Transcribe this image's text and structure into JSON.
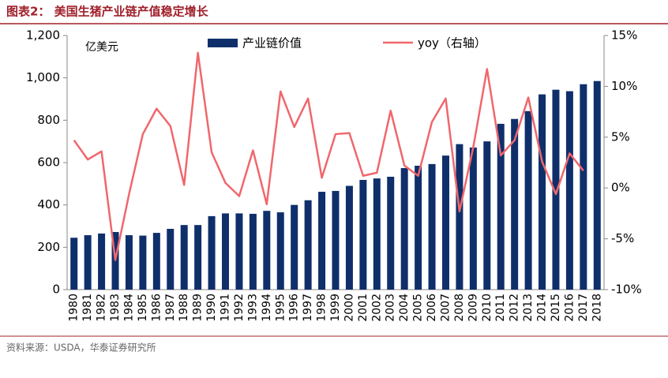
{
  "chart_data": {
    "type": "bar_line",
    "title": "图表2： 美国生猪产业链产值稳定增长",
    "unit_label": "亿美元",
    "source": "资料来源：USDA，华泰证券研究所",
    "categories": [
      "1980",
      "1981",
      "1982",
      "1983",
      "1984",
      "1985",
      "1986",
      "1987",
      "1988",
      "1989",
      "1990",
      "1991",
      "1992",
      "1993",
      "1994",
      "1995",
      "1996",
      "1997",
      "1998",
      "1999",
      "2000",
      "2001",
      "2002",
      "2003",
      "2004",
      "2005",
      "2006",
      "2007",
      "2008",
      "2009",
      "2010",
      "2011",
      "2012",
      "2013",
      "2014",
      "2015",
      "2016",
      "2017",
      "2018"
    ],
    "series": [
      {
        "name": "产业链价值",
        "type": "bar",
        "color": "#0f2f6b",
        "values": [
          245,
          257,
          265,
          272,
          257,
          255,
          268,
          287,
          305,
          305,
          347,
          360,
          360,
          358,
          372,
          365,
          400,
          422,
          462,
          466,
          490,
          518,
          525,
          533,
          574,
          585,
          593,
          633,
          687,
          671,
          700,
          783,
          806,
          843,
          922,
          944,
          937,
          970,
          985
        ]
      },
      {
        "name": "yoy（右轴）",
        "type": "line",
        "axis": "y2",
        "color": "#f0676c",
        "values": [
          4.7,
          2.8,
          3.6,
          -7.1,
          -0.6,
          5.3,
          7.8,
          6.1,
          0.3,
          13.3,
          3.5,
          0.5,
          -0.8,
          3.7,
          -1.6,
          9.5,
          6.0,
          8.8,
          1.0,
          5.3,
          5.4,
          1.2,
          1.5,
          7.6,
          2.2,
          1.2,
          6.5,
          8.8,
          -2.3,
          4.0,
          11.7,
          3.2,
          4.7,
          8.9,
          2.6,
          -0.6,
          3.4,
          1.7,
          null
        ]
      }
    ],
    "ylim": [
      0,
      1200
    ],
    "yticks": [
      0,
      200,
      400,
      600,
      800,
      {
        "value": 1000,
        "label": "1,000"
      },
      {
        "value": 1200,
        "label": "1,200"
      }
    ],
    "y2lim": [
      -10,
      15
    ],
    "y2ticks": [
      {
        "value": -10,
        "label": "-10%"
      },
      {
        "value": -5,
        "label": "-5%"
      },
      {
        "value": 0,
        "label": "0%"
      },
      {
        "value": 5,
        "label": "5%"
      },
      {
        "value": 10,
        "label": "10%"
      },
      {
        "value": 15,
        "label": "15%"
      }
    ]
  }
}
